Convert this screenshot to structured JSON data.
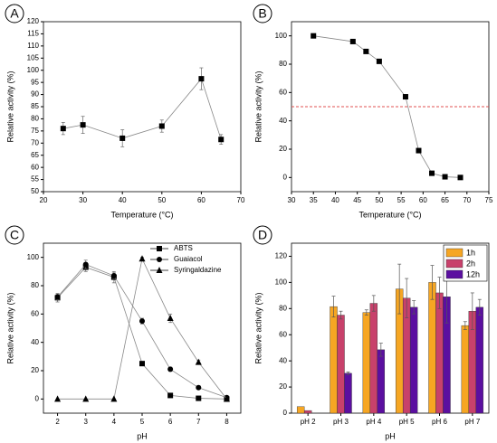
{
  "chart_data": [
    {
      "type": "line",
      "panel_label": "A",
      "xlabel": "Temperature (°C)",
      "ylabel": "Relative activity (%)",
      "x": [
        25,
        30,
        40,
        50,
        60,
        65
      ],
      "xlim": [
        20,
        70
      ],
      "xticks": [
        20,
        30,
        40,
        50,
        60,
        70
      ],
      "ylim": [
        50,
        120
      ],
      "yticks": [
        50,
        55,
        60,
        65,
        70,
        75,
        80,
        85,
        90,
        95,
        100,
        105,
        110,
        115,
        120
      ],
      "series": [
        {
          "marker": "square",
          "color": "#000000",
          "values": [
            76,
            77.5,
            72,
            77,
            96.5,
            71.5
          ],
          "errors": [
            2.5,
            3.5,
            3.5,
            2.5,
            4.5,
            2
          ]
        }
      ]
    },
    {
      "type": "line",
      "panel_label": "B",
      "xlabel": "Temperature (°C)",
      "ylabel": "Relative activity (%)",
      "x": [
        35,
        44,
        47,
        50,
        56,
        59,
        62,
        65,
        68.5
      ],
      "xlim": [
        30,
        75
      ],
      "xticks": [
        30,
        35,
        40,
        45,
        50,
        55,
        60,
        65,
        70,
        75
      ],
      "ylim": [
        -10,
        110
      ],
      "yticks": [
        0,
        20,
        40,
        60,
        80,
        100
      ],
      "hline": {
        "value": 50,
        "color": "#e05050"
      },
      "series": [
        {
          "marker": "square",
          "color": "#000000",
          "values": [
            100,
            96,
            89,
            82,
            57,
            19,
            3,
            0.5,
            0
          ]
        }
      ]
    },
    {
      "type": "line",
      "panel_label": "C",
      "xlabel": "pH",
      "ylabel": "Relative activity (%)",
      "x": [
        2,
        3,
        4,
        5,
        6,
        7,
        8
      ],
      "xlim": [
        1.5,
        8.5
      ],
      "xticks": [
        2,
        3,
        4,
        5,
        6,
        7,
        8
      ],
      "ylim": [
        -10,
        110
      ],
      "yticks": [
        0,
        20,
        40,
        60,
        80,
        100
      ],
      "series": [
        {
          "name": "ABTS",
          "marker": "square",
          "color": "#000000",
          "values": [
            71.5,
            93,
            86,
            25,
            2.5,
            0.5,
            0
          ],
          "errors": [
            3,
            3,
            4,
            1.5,
            0.5,
            0.5,
            0.5
          ]
        },
        {
          "name": "Guaiacol",
          "marker": "circle",
          "color": "#000000",
          "values": [
            72,
            95,
            87,
            55,
            21,
            8,
            1
          ],
          "errors": [
            2,
            3,
            2,
            2,
            1.5,
            1,
            0.5
          ]
        },
        {
          "name": "Syringaldazine",
          "marker": "triangle",
          "color": "#000000",
          "values": [
            0,
            0,
            0,
            99,
            57,
            26,
            0
          ],
          "errors": [
            0,
            0,
            0,
            1,
            3,
            1.5,
            0
          ]
        }
      ]
    },
    {
      "type": "bar",
      "panel_label": "D",
      "xlabel": "pH",
      "ylabel": "Relative activity (%)",
      "categories": [
        "pH 2",
        "pH 3",
        "pH 4",
        "pH 5",
        "pH 6",
        "pH 7"
      ],
      "ylim": [
        0,
        130
      ],
      "yticks": [
        0,
        20,
        40,
        60,
        80,
        100,
        120
      ],
      "series": [
        {
          "name": "1h",
          "color": "#f6a623",
          "values": [
            5,
            81.5,
            77,
            95,
            100,
            67
          ],
          "errors": [
            0,
            8,
            2,
            19,
            13,
            3
          ]
        },
        {
          "name": "2h",
          "color": "#c8416b",
          "values": [
            2,
            75,
            84,
            88,
            92,
            78
          ],
          "errors": [
            0,
            3,
            6,
            15,
            12,
            14
          ]
        },
        {
          "name": "12h",
          "color": "#5b0fa0",
          "values": [
            0,
            30.5,
            48.5,
            81,
            89,
            81
          ],
          "errors": [
            0,
            1,
            5,
            5,
            20,
            6
          ]
        }
      ]
    }
  ]
}
